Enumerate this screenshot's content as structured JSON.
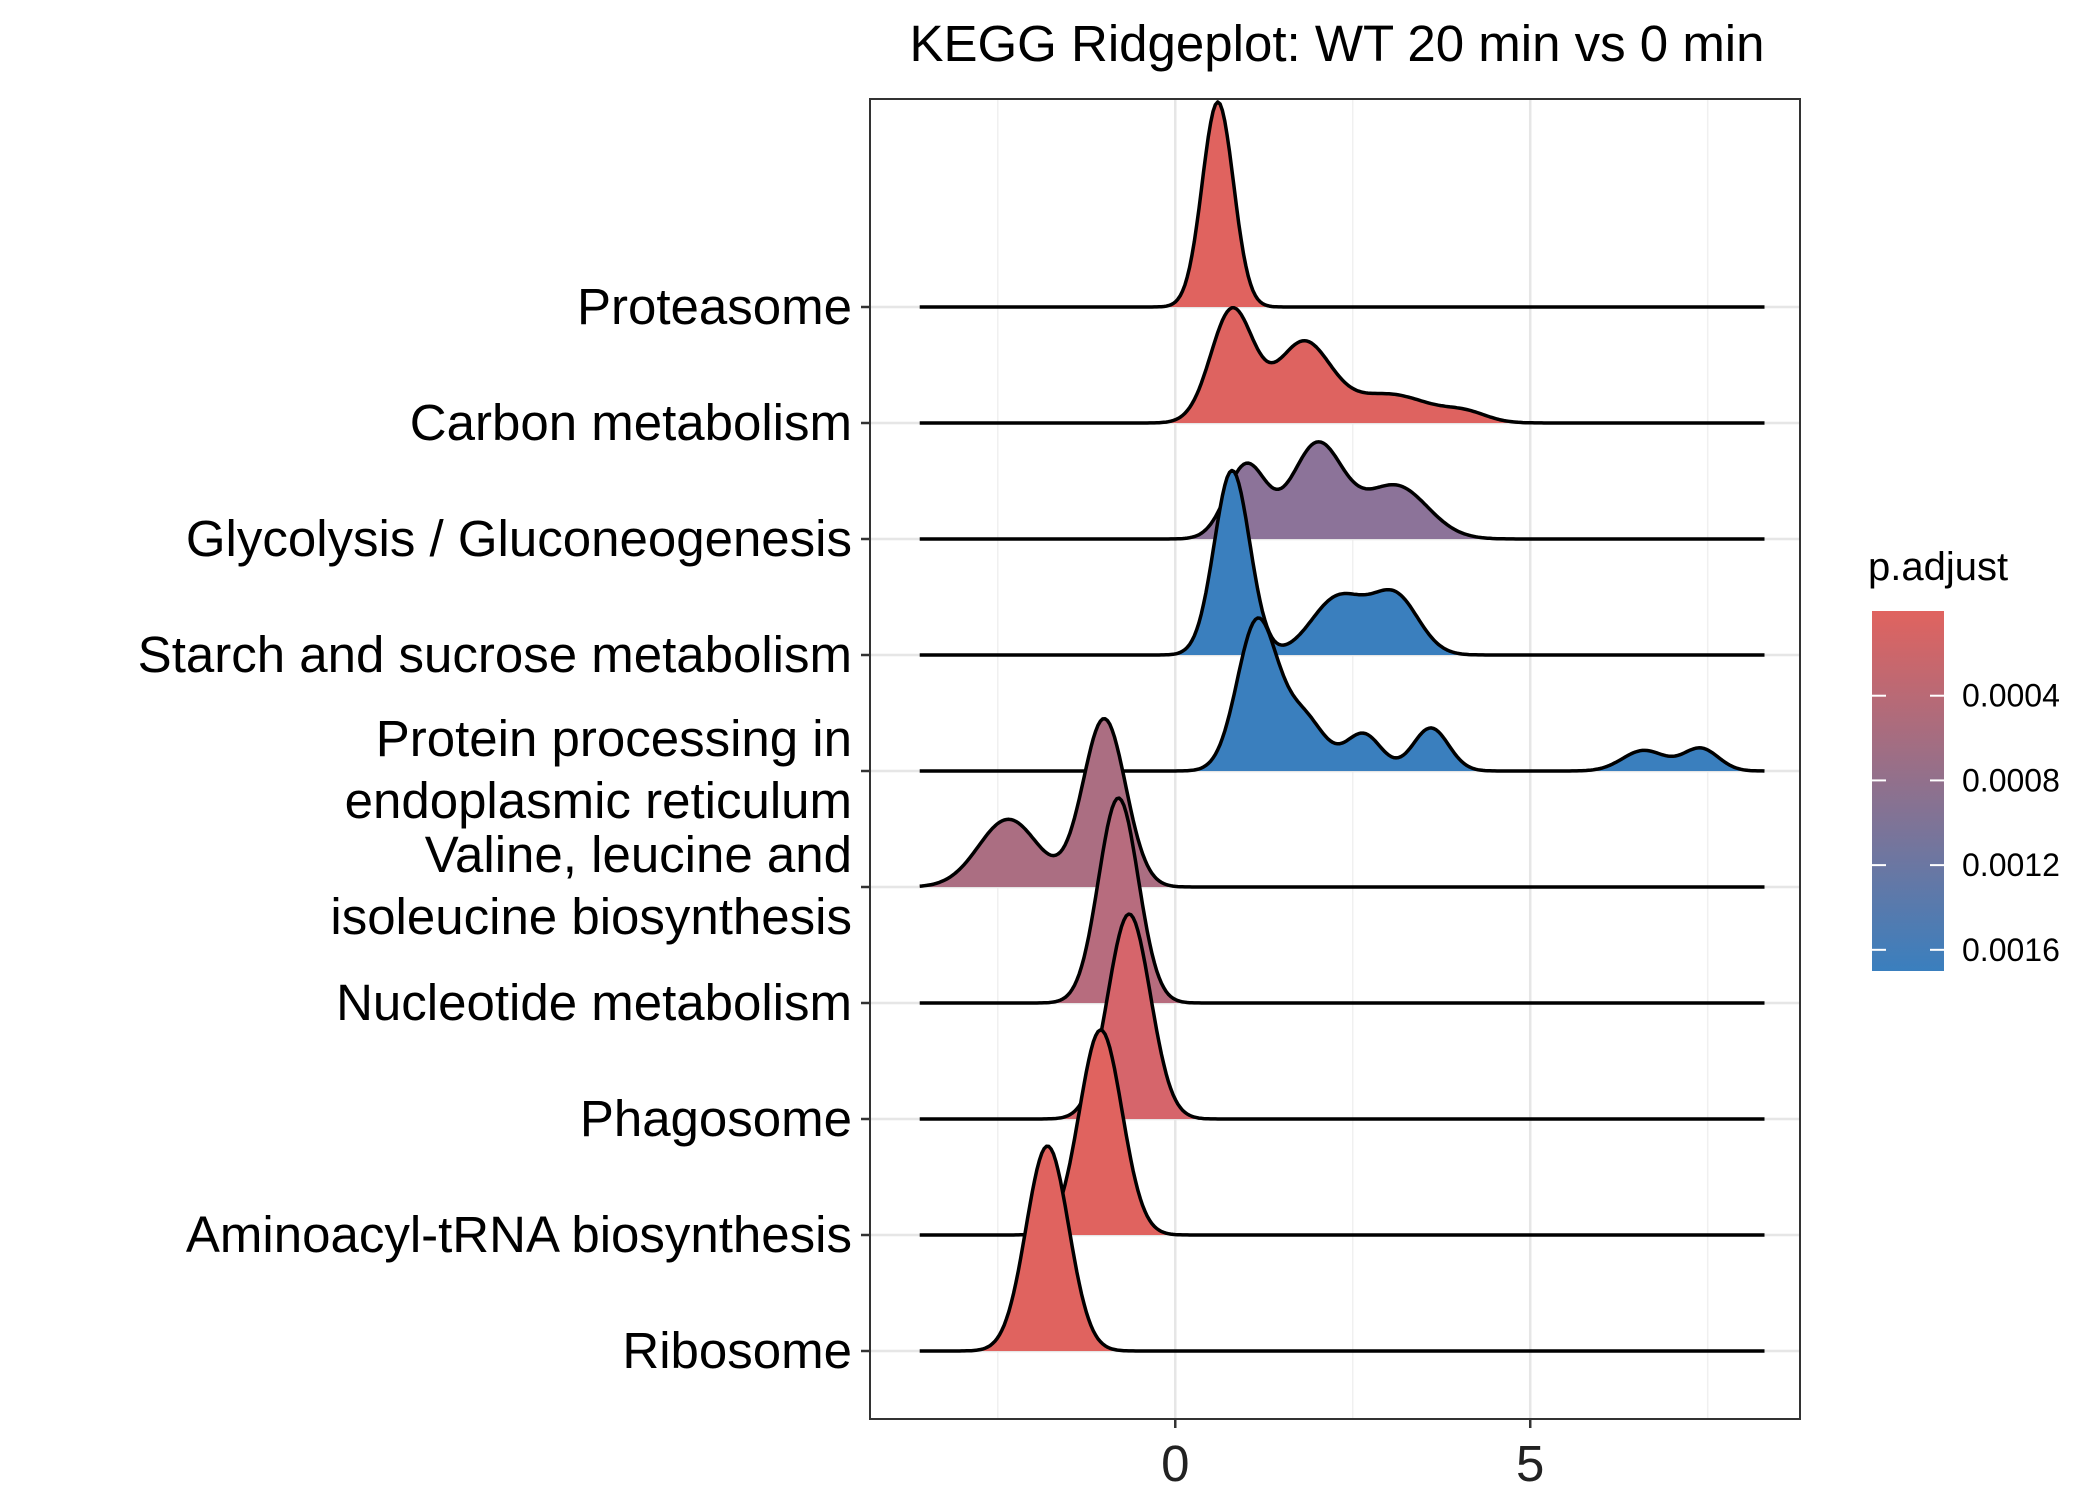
{
  "chart_data": {
    "type": "ridgeline",
    "title": "KEGG Ridgeplot: WT 20 min vs 0 min",
    "xlabel": "",
    "ylabel": "",
    "xlim": [
      -4.3,
      8.8
    ],
    "x_ticks": [
      0,
      5
    ],
    "x_tick_labels": [
      "0",
      "5"
    ],
    "x_minor_grid": [
      -2.5,
      2.5,
      7.5
    ],
    "grid": true,
    "ridge_extent": [
      -3.6,
      8.3
    ],
    "categories_top_to_bottom": [
      "Proteasome",
      "Carbon metabolism",
      "Glycolysis / Gluconeogenesis",
      "Starch and sucrose metabolism",
      "Protein processing in endoplasmic reticulum",
      "Valine, leucine and isoleucine biosynthesis",
      "Nucleotide metabolism",
      "Phagosome",
      "Aminoacyl-tRNA biosynthesis",
      "Ribosome"
    ],
    "ytick_label_lines": [
      [
        "Proteasome"
      ],
      [
        "Carbon metabolism"
      ],
      [
        "Glycolysis / Gluconeogenesis"
      ],
      [
        "Starch and sucrose metabolism"
      ],
      [
        "Protein processing in",
        "endoplasmic reticulum"
      ],
      [
        "Valine, leucine and",
        "isoleucine biosynthesis"
      ],
      [
        "Nucleotide metabolism"
      ],
      [
        "Phagosome"
      ],
      [
        "Aminoacyl-tRNA biosynthesis"
      ],
      [
        "Ribosome"
      ]
    ],
    "series": [
      {
        "name": "Proteasome",
        "p_adjust": 0.0,
        "fill": "#e0635f",
        "components": [
          {
            "mu": 0.6,
            "sd": 0.22,
            "w": 1.0
          }
        ]
      },
      {
        "name": "Carbon metabolism",
        "p_adjust": 0.0001,
        "fill": "#de6360",
        "components": [
          {
            "mu": 0.8,
            "sd": 0.3,
            "w": 0.55
          },
          {
            "mu": 1.8,
            "sd": 0.38,
            "w": 0.38
          },
          {
            "mu": 3.0,
            "sd": 0.6,
            "w": 0.14
          },
          {
            "mu": 4.1,
            "sd": 0.3,
            "w": 0.04
          }
        ]
      },
      {
        "name": "Glycolysis / Gluconeogenesis",
        "p_adjust": 0.0011,
        "fill": "#8c7399",
        "components": [
          {
            "mu": 1.0,
            "sd": 0.28,
            "w": 0.36
          },
          {
            "mu": 2.0,
            "sd": 0.36,
            "w": 0.46
          },
          {
            "mu": 3.1,
            "sd": 0.45,
            "w": 0.26
          }
        ]
      },
      {
        "name": "Starch and sucrose metabolism",
        "p_adjust": 0.0017,
        "fill": "#3a7fbe",
        "components": [
          {
            "mu": 0.8,
            "sd": 0.25,
            "w": 0.9
          },
          {
            "mu": 2.3,
            "sd": 0.38,
            "w": 0.28
          },
          {
            "mu": 3.1,
            "sd": 0.33,
            "w": 0.28
          }
        ]
      },
      {
        "name": "Protein processing in endoplasmic reticulum",
        "p_adjust": 0.0017,
        "fill": "#3a7fbe",
        "components": [
          {
            "mu": 1.15,
            "sd": 0.28,
            "w": 0.72
          },
          {
            "mu": 1.8,
            "sd": 0.3,
            "w": 0.26
          },
          {
            "mu": 2.65,
            "sd": 0.25,
            "w": 0.18
          },
          {
            "mu": 3.6,
            "sd": 0.25,
            "w": 0.21
          },
          {
            "mu": 6.6,
            "sd": 0.3,
            "w": 0.1
          },
          {
            "mu": 7.4,
            "sd": 0.25,
            "w": 0.11
          }
        ]
      },
      {
        "name": "Valine, leucine and isoleucine biosynthesis",
        "p_adjust": 0.0007,
        "fill": "#ab6e82",
        "components": [
          {
            "mu": -2.35,
            "sd": 0.42,
            "w": 0.33
          },
          {
            "mu": -1.0,
            "sd": 0.3,
            "w": 0.82
          }
        ]
      },
      {
        "name": "Nucleotide metabolism",
        "p_adjust": 0.0006,
        "fill": "#b76c7e",
        "components": [
          {
            "mu": -0.8,
            "sd": 0.28,
            "w": 1.0
          }
        ]
      },
      {
        "name": "Phagosome",
        "p_adjust": 0.0002,
        "fill": "#d6656b",
        "components": [
          {
            "mu": -0.65,
            "sd": 0.3,
            "w": 1.0
          }
        ]
      },
      {
        "name": "Aminoacyl-tRNA biosynthesis",
        "p_adjust": 0.0,
        "fill": "#e0635f",
        "components": [
          {
            "mu": -1.05,
            "sd": 0.3,
            "w": 1.0
          }
        ]
      },
      {
        "name": "Ribosome",
        "p_adjust": 0.0,
        "fill": "#e0635f",
        "components": [
          {
            "mu": -1.8,
            "sd": 0.3,
            "w": 1.0
          }
        ]
      }
    ],
    "legend": {
      "title": "p.adjust",
      "placement": "right",
      "color_low": "#e0635f",
      "color_high": "#3a7fbe",
      "range": [
        0.0,
        0.0017
      ],
      "ticks": [
        0.0004,
        0.0008,
        0.0012,
        0.0016
      ],
      "tick_labels": [
        "0.0004",
        "0.0008",
        "0.0012",
        "0.0016"
      ]
    }
  }
}
